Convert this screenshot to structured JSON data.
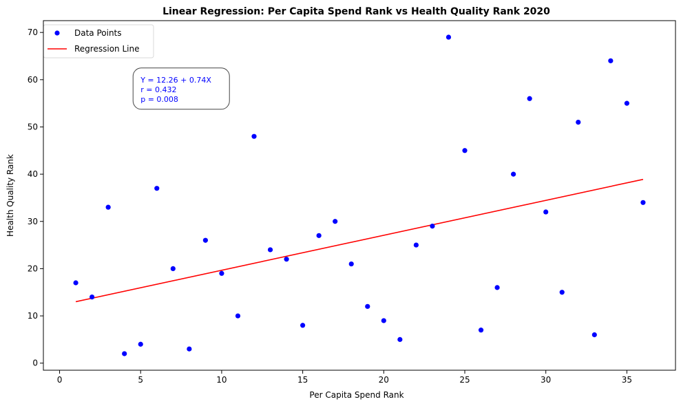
{
  "chart_data": {
    "type": "scatter",
    "title": "Linear Regression: Per Capita Spend Rank vs Health Quality Rank 2020",
    "xlabel": "Per Capita Spend Rank",
    "ylabel": "Health Quality Rank",
    "xlim": [
      -1,
      38
    ],
    "ylim": [
      -1.5,
      72.5
    ],
    "xticks": [
      0,
      5,
      10,
      15,
      20,
      25,
      30,
      35
    ],
    "yticks": [
      0,
      10,
      20,
      30,
      40,
      50,
      60,
      70
    ],
    "grid": false,
    "legend": {
      "position": "top-left",
      "entries": [
        "Data Points",
        "Regression Line"
      ]
    },
    "series": [
      {
        "name": "Data Points",
        "kind": "scatter",
        "color": "#0000ff",
        "x": [
          1,
          2,
          3,
          4,
          5,
          6,
          7,
          8,
          9,
          10,
          11,
          12,
          13,
          14,
          15,
          16,
          17,
          18,
          19,
          20,
          21,
          22,
          23,
          24,
          25,
          26,
          27,
          28,
          29,
          30,
          31,
          32,
          33,
          34,
          35,
          36
        ],
        "y": [
          17,
          14,
          33,
          2,
          4,
          37,
          20,
          3,
          26,
          19,
          10,
          48,
          24,
          22,
          8,
          27,
          30,
          21,
          12,
          9,
          5,
          25,
          29,
          69,
          45,
          7,
          16,
          40,
          56,
          32,
          15,
          51,
          6,
          64,
          55,
          34
        ]
      },
      {
        "name": "Regression Line",
        "kind": "line",
        "color": "#ff0000",
        "intercept": 12.26,
        "slope": 0.74,
        "x_range": [
          1,
          36
        ]
      }
    ],
    "annotation": {
      "lines": [
        "Y = 12.26 + 0.74X",
        "r = 0.432",
        "p = 0.008"
      ],
      "color": "#0000ff",
      "anchor": {
        "x": 5,
        "y": 60
      }
    }
  }
}
